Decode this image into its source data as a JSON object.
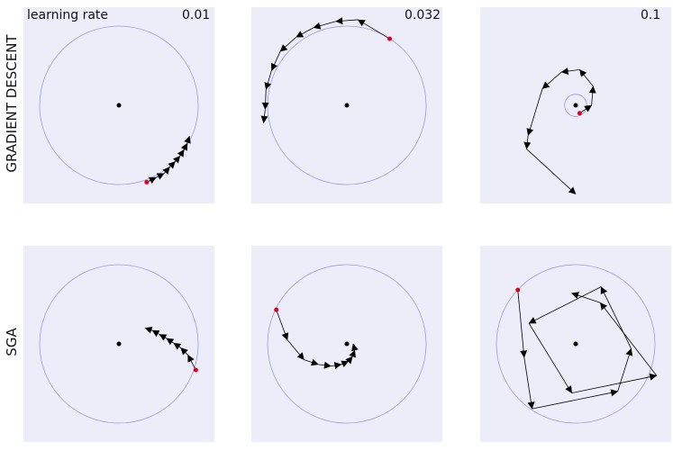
{
  "figure": {
    "lr_caption": "learning rate",
    "rows": [
      {
        "label": "GRADIENT DESCENT"
      },
      {
        "label": "SGA"
      }
    ],
    "columns": [
      {
        "learning_rate": "0.01"
      },
      {
        "learning_rate": "0.032"
      },
      {
        "learning_rate": "0.1"
      }
    ]
  },
  "colors": {
    "panel_bg": "#ededfa",
    "circle": "#9a9ad6",
    "arrow": "#000000",
    "start_point": "#e0001b",
    "center_point": "#000000"
  },
  "chart_data": [
    {
      "type": "scatter",
      "method": "GRADIENT DESCENT",
      "learning_rate": 0.01,
      "center": [
        0,
        0
      ],
      "unit_circle_radius": 1,
      "trajectory": [
        [
          0.35,
          -0.97
        ],
        [
          0.47,
          -0.91
        ],
        [
          0.57,
          -0.86
        ],
        [
          0.64,
          -0.78
        ],
        [
          0.71,
          -0.71
        ],
        [
          0.77,
          -0.64
        ],
        [
          0.82,
          -0.56
        ],
        [
          0.86,
          -0.48
        ],
        [
          0.89,
          -0.39
        ]
      ]
    },
    {
      "type": "scatter",
      "method": "GRADIENT DESCENT",
      "learning_rate": 0.032,
      "center": [
        0,
        0
      ],
      "unit_circle_radius": 1,
      "trajectory": [
        [
          0.54,
          0.84
        ],
        [
          0.14,
          1.08
        ],
        [
          -0.14,
          1.06
        ],
        [
          -0.42,
          0.98
        ],
        [
          -0.64,
          0.86
        ],
        [
          -0.84,
          0.68
        ],
        [
          -0.95,
          0.44
        ],
        [
          -1.02,
          0.2
        ],
        [
          -1.03,
          -0.05
        ],
        [
          -1.05,
          -0.22
        ]
      ]
    },
    {
      "type": "scatter",
      "method": "GRADIENT DESCENT",
      "learning_rate": 0.1,
      "center": [
        0,
        0
      ],
      "unit_circle_radius": 0.14,
      "trajectory": [
        [
          0.05,
          -0.1
        ],
        [
          0.2,
          0.0
        ],
        [
          0.22,
          0.24
        ],
        [
          0.05,
          0.45
        ],
        [
          -0.18,
          0.42
        ],
        [
          -0.42,
          0.21
        ],
        [
          -0.6,
          -0.38
        ],
        [
          -0.62,
          -0.55
        ],
        [
          0.0,
          -1.12
        ]
      ]
    },
    {
      "type": "scatter",
      "method": "SGA",
      "learning_rate": 0.01,
      "center": [
        0,
        0
      ],
      "unit_circle_radius": 1,
      "trajectory": [
        [
          0.97,
          -0.33
        ],
        [
          0.87,
          -0.14
        ],
        [
          0.78,
          -0.05
        ],
        [
          0.69,
          0.01
        ],
        [
          0.6,
          0.07
        ],
        [
          0.51,
          0.12
        ],
        [
          0.42,
          0.17
        ],
        [
          0.33,
          0.2
        ]
      ]
    },
    {
      "type": "scatter",
      "method": "SGA",
      "learning_rate": 0.032,
      "center": [
        0,
        0
      ],
      "unit_circle_radius": 1,
      "trajectory": [
        [
          -0.89,
          0.43
        ],
        [
          -0.75,
          0.05
        ],
        [
          -0.54,
          -0.2
        ],
        [
          -0.36,
          -0.26
        ],
        [
          -0.2,
          -0.28
        ],
        [
          -0.07,
          -0.26
        ],
        [
          0.02,
          -0.22
        ],
        [
          0.07,
          -0.16
        ],
        [
          0.1,
          -0.08
        ],
        [
          0.08,
          0.0
        ]
      ]
    },
    {
      "type": "scatter",
      "method": "SGA",
      "learning_rate": 0.1,
      "center": [
        0,
        0
      ],
      "unit_circle_radius": 1,
      "trajectory": [
        [
          -0.73,
          0.68
        ],
        [
          -0.65,
          -0.17
        ],
        [
          -0.55,
          -0.82
        ],
        [
          0.53,
          -0.6
        ],
        [
          0.7,
          -0.06
        ],
        [
          0.32,
          0.72
        ],
        [
          -0.59,
          0.26
        ],
        [
          -0.05,
          -0.62
        ],
        [
          1.02,
          -0.4
        ],
        [
          0.31,
          0.52
        ],
        [
          -0.05,
          0.64
        ]
      ]
    }
  ]
}
